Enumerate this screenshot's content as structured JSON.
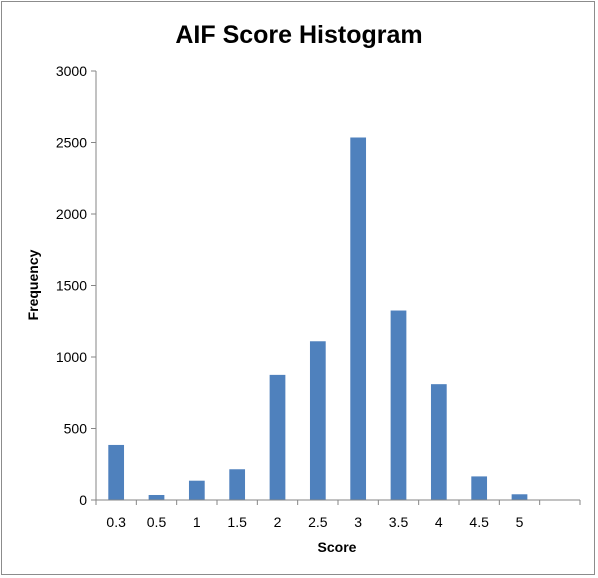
{
  "chart_data": {
    "type": "bar",
    "title": "AIF Score Histogram",
    "xlabel": "Score",
    "ylabel": "Frequency",
    "categories": [
      "0.3",
      "0.5",
      "1",
      "1.5",
      "2",
      "2.5",
      "3",
      "3.5",
      "4",
      "4.5",
      "5",
      ""
    ],
    "values": [
      385,
      35,
      135,
      215,
      875,
      1110,
      2535,
      1325,
      810,
      165,
      40,
      0
    ],
    "ylim": [
      0,
      3000
    ],
    "yticks": [
      0,
      500,
      1000,
      1500,
      2000,
      2500,
      3000
    ],
    "grid": false,
    "legend": "none",
    "bar_color": "#4f81bd"
  }
}
